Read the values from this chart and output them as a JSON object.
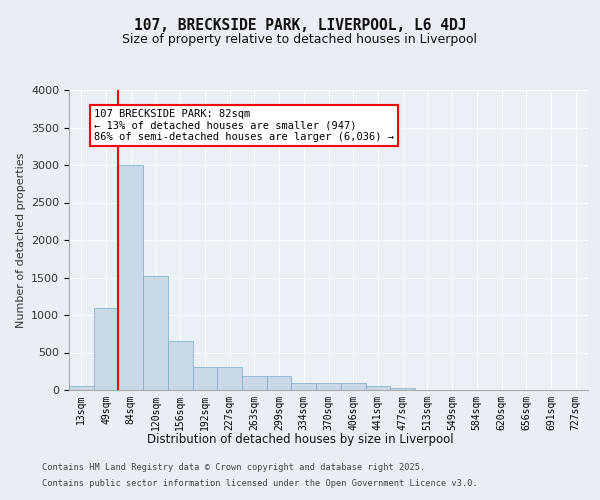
{
  "title_line1": "107, BRECKSIDE PARK, LIVERPOOL, L6 4DJ",
  "title_line2": "Size of property relative to detached houses in Liverpool",
  "xlabel": "Distribution of detached houses by size in Liverpool",
  "ylabel": "Number of detached properties",
  "categories": [
    "13sqm",
    "49sqm",
    "84sqm",
    "120sqm",
    "156sqm",
    "192sqm",
    "227sqm",
    "263sqm",
    "299sqm",
    "334sqm",
    "370sqm",
    "406sqm",
    "441sqm",
    "477sqm",
    "513sqm",
    "549sqm",
    "584sqm",
    "620sqm",
    "656sqm",
    "691sqm",
    "727sqm"
  ],
  "values": [
    50,
    1100,
    3000,
    1520,
    660,
    310,
    310,
    185,
    185,
    95,
    90,
    90,
    55,
    30,
    5,
    5,
    5,
    5,
    5,
    5,
    5
  ],
  "bar_color": "#c8d8e8",
  "bar_edge_color": "#7aaac8",
  "red_line_index": 2,
  "annotation_text": "107 BRECKSIDE PARK: 82sqm\n← 13% of detached houses are smaller (947)\n86% of semi-detached houses are larger (6,036) →",
  "annotation_box_color": "white",
  "annotation_box_edge": "red",
  "ylim": [
    0,
    4000
  ],
  "yticks": [
    0,
    500,
    1000,
    1500,
    2000,
    2500,
    3000,
    3500,
    4000
  ],
  "bg_color": "#e8eef4",
  "plot_bg_color": "#eaf0f6",
  "grid_color": "white",
  "footer_line1": "Contains HM Land Registry data © Crown copyright and database right 2025.",
  "footer_line2": "Contains public sector information licensed under the Open Government Licence v3.0."
}
